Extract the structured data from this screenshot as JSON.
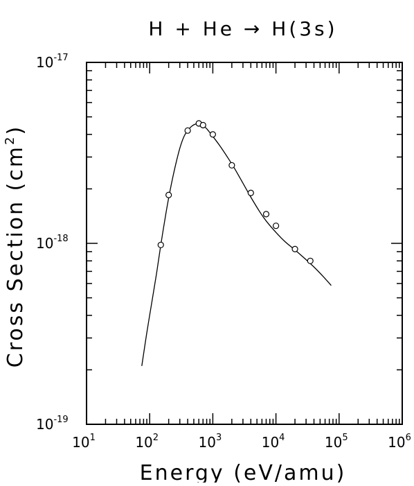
{
  "chart_data": {
    "type": "line",
    "title": "H + He → H(3s)",
    "xlabel": "Energy (eV/amu)",
    "ylabel_main": "Cross Section (cm",
    "ylabel_sup": "2",
    "ylabel_close": ")",
    "x_scale": "log",
    "y_scale": "log",
    "xlim": [
      10,
      1000000
    ],
    "ylim": [
      1e-19,
      1e-17
    ],
    "x_tick_labels": [
      {
        "base": "10",
        "exp": "1"
      },
      {
        "base": "10",
        "exp": "2"
      },
      {
        "base": "10",
        "exp": "3"
      },
      {
        "base": "10",
        "exp": "4"
      },
      {
        "base": "10",
        "exp": "5"
      },
      {
        "base": "10",
        "exp": "6"
      }
    ],
    "y_tick_labels": [
      {
        "base": "10",
        "exp": "-19"
      },
      {
        "base": "10",
        "exp": "-18"
      },
      {
        "base": "10",
        "exp": "-17"
      }
    ],
    "grid": false,
    "series": [
      {
        "kind": "fit-curve",
        "x": [
          75,
          90,
          110,
          130,
          150,
          180,
          210,
          250,
          300,
          350,
          400,
          450,
          500,
          560,
          620,
          700,
          800,
          1000,
          1300,
          1700,
          2200,
          3000,
          4000,
          5500,
          7000,
          10000,
          14000,
          20000,
          28000,
          40000,
          55000,
          75000
        ],
        "y": [
          2.1e-19,
          3.2e-19,
          4.9e-19,
          7e-19,
          9.8e-19,
          1.45e-18,
          1.95e-18,
          2.6e-18,
          3.35e-18,
          3.9e-18,
          4.2e-18,
          4.4e-18,
          4.52e-18,
          4.58e-18,
          4.56e-18,
          4.48e-18,
          4.3e-18,
          3.9e-18,
          3.45e-18,
          3e-18,
          2.6e-18,
          2.15e-18,
          1.8e-18,
          1.5e-18,
          1.33e-18,
          1.15e-18,
          1.02e-18,
          9.2e-19,
          8.3e-19,
          7.4e-19,
          6.6e-19,
          5.85e-19
        ]
      },
      {
        "kind": "data-points",
        "marker": "open-circle",
        "x": [
          150,
          200,
          400,
          600,
          700,
          1000,
          2000,
          4000,
          7000,
          10000,
          20000,
          35000
        ],
        "y": [
          9.8e-19,
          1.85e-18,
          4.2e-18,
          4.6e-18,
          4.5e-18,
          4e-18,
          2.7e-18,
          1.9e-18,
          1.45e-18,
          1.25e-18,
          9.3e-19,
          8e-19
        ]
      }
    ]
  }
}
